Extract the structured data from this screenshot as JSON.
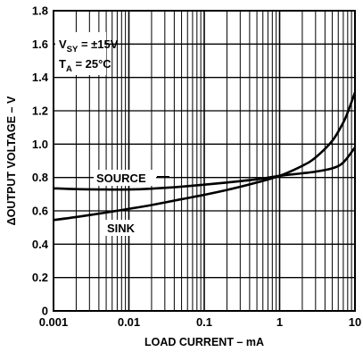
{
  "chart_data": {
    "type": "line",
    "xlabel": "LOAD CURRENT – mA",
    "ylabel": "ΔOUTPUT VOLTAGE – V",
    "x_scale": "log",
    "xlim": [
      0.001,
      10
    ],
    "ylim": [
      0,
      1.8
    ],
    "grid": true,
    "x_ticks": [
      "0.001",
      "0.01",
      "0.1",
      "1",
      "10"
    ],
    "y_ticks": [
      "0",
      "0.2",
      "0.4",
      "0.6",
      "0.8",
      "1.0",
      "1.2",
      "1.4",
      "1.6",
      "1.8"
    ],
    "annotations": {
      "vsy_main": "V",
      "vsy_sub": "SY",
      "vsy_value": " = ±15V",
      "ta_main": "T",
      "ta_sub": "A",
      "ta_value": " = 25°C"
    },
    "series": [
      {
        "name": "SOURCE",
        "x": [
          0.001,
          0.002,
          0.005,
          0.01,
          0.02,
          0.05,
          0.1,
          0.2,
          0.5,
          1,
          2,
          3,
          5,
          7,
          10
        ],
        "y": [
          0.735,
          0.73,
          0.728,
          0.728,
          0.733,
          0.745,
          0.757,
          0.77,
          0.789,
          0.81,
          0.825,
          0.835,
          0.855,
          0.89,
          0.98
        ]
      },
      {
        "name": "SINK",
        "x": [
          0.001,
          0.002,
          0.005,
          0.01,
          0.02,
          0.05,
          0.1,
          0.2,
          0.5,
          1,
          2,
          3,
          5,
          7,
          8,
          10
        ],
        "y": [
          0.545,
          0.563,
          0.59,
          0.612,
          0.635,
          0.67,
          0.696,
          0.725,
          0.77,
          0.81,
          0.87,
          0.92,
          1.02,
          1.13,
          1.19,
          1.31
        ]
      }
    ]
  }
}
